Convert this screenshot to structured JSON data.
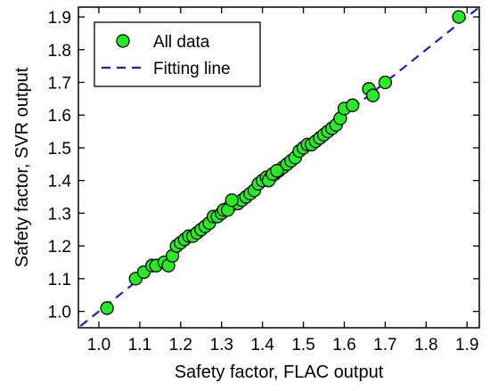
{
  "chart_data": {
    "type": "scatter",
    "xlabel": "Safety factor, FLAC output",
    "ylabel": "Safety factor, SVR output",
    "xlim": [
      0.95,
      1.93
    ],
    "ylim": [
      0.95,
      1.93
    ],
    "xticks": [
      1.0,
      1.1,
      1.2,
      1.3,
      1.4,
      1.5,
      1.6,
      1.7,
      1.8,
      1.9
    ],
    "yticks": [
      1.0,
      1.1,
      1.2,
      1.3,
      1.4,
      1.5,
      1.6,
      1.7,
      1.8,
      1.9
    ],
    "tick_labels_x": [
      "1.0",
      "1.1",
      "1.2",
      "1.3",
      "1.4",
      "1.5",
      "1.6",
      "1.7",
      "1.8",
      "1.9"
    ],
    "tick_labels_y": [
      "1.0",
      "1.1",
      "1.2",
      "1.3",
      "1.4",
      "1.5",
      "1.6",
      "1.7",
      "1.8",
      "1.9"
    ],
    "legend_position": "top-left",
    "grid": false,
    "series": [
      {
        "name": "All data",
        "kind": "points",
        "color": "#22ee22",
        "edge_color": "#000000",
        "x": [
          1.02,
          1.09,
          1.11,
          1.13,
          1.14,
          1.16,
          1.17,
          1.18,
          1.19,
          1.2,
          1.21,
          1.22,
          1.23,
          1.24,
          1.25,
          1.26,
          1.27,
          1.28,
          1.29,
          1.3,
          1.31,
          1.32,
          1.33,
          1.34,
          1.35,
          1.36,
          1.37,
          1.38,
          1.39,
          1.4,
          1.41,
          1.42,
          1.43,
          1.44,
          1.45,
          1.46,
          1.47,
          1.48,
          1.49,
          1.5,
          1.51,
          1.52,
          1.53,
          1.54,
          1.55,
          1.56,
          1.57,
          1.58,
          1.59,
          1.6,
          1.62,
          1.66,
          1.67,
          1.7,
          1.88,
          1.305,
          1.315,
          1.325,
          1.415,
          1.425,
          1.435
        ],
        "y": [
          1.01,
          1.1,
          1.12,
          1.14,
          1.14,
          1.15,
          1.14,
          1.17,
          1.2,
          1.21,
          1.22,
          1.23,
          1.23,
          1.24,
          1.25,
          1.26,
          1.27,
          1.29,
          1.29,
          1.3,
          1.31,
          1.32,
          1.33,
          1.33,
          1.34,
          1.35,
          1.36,
          1.37,
          1.39,
          1.4,
          1.41,
          1.41,
          1.42,
          1.43,
          1.44,
          1.45,
          1.46,
          1.47,
          1.49,
          1.5,
          1.51,
          1.51,
          1.52,
          1.53,
          1.54,
          1.55,
          1.56,
          1.57,
          1.59,
          1.62,
          1.63,
          1.68,
          1.66,
          1.7,
          1.9,
          1.31,
          1.31,
          1.34,
          1.4,
          1.42,
          1.43
        ]
      },
      {
        "name": "Fitting line",
        "kind": "line",
        "color": "#1a1adb",
        "dash": true,
        "x": [
          0.955,
          1.93
        ],
        "y": [
          0.955,
          1.93
        ]
      }
    ]
  }
}
